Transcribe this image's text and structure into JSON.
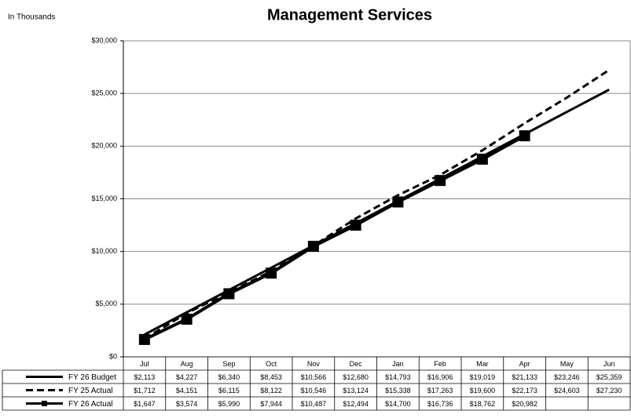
{
  "chart_data": {
    "type": "line",
    "title": "Management Services",
    "subtitle": "In Thousands",
    "categories": [
      "Jul",
      "Aug",
      "Sep",
      "Oct",
      "Nov",
      "Dec",
      "Jan",
      "Feb",
      "Mar",
      "Apr",
      "May",
      "Jun"
    ],
    "series": [
      {
        "name": "FY 26 Budget",
        "color": "#000000",
        "line_style": "solid",
        "marker": "none",
        "values": [
          2113,
          4227,
          6340,
          8453,
          10566,
          12680,
          14793,
          16906,
          19019,
          21133,
          23246,
          25359
        ],
        "value_labels": [
          "$2,113",
          "$4,227",
          "$6,340",
          "$8,453",
          "$10,566",
          "$12,680",
          "$14,793",
          "$16,906",
          "$19,019",
          "$21,133",
          "$23,246",
          "$25,359"
        ]
      },
      {
        "name": "FY 25 Actual",
        "color": "#000000",
        "line_style": "dashed",
        "marker": "none",
        "values": [
          1712,
          4151,
          6115,
          8122,
          10546,
          13124,
          15338,
          17263,
          19600,
          22173,
          24603,
          27230
        ],
        "value_labels": [
          "$1,712",
          "$4,151",
          "$6,115",
          "$8,122",
          "$10,546",
          "$13,124",
          "$15,338",
          "$17,263",
          "$19,600",
          "$22,173",
          "$24,603",
          "$27,230"
        ]
      },
      {
        "name": "FY 26 Actual",
        "color": "#000000",
        "line_style": "solid",
        "marker": "square",
        "values": [
          1647,
          3574,
          5990,
          7944,
          10487,
          12494,
          14700,
          16736,
          18762,
          20982,
          null,
          null
        ],
        "value_labels": [
          "$1,647",
          "$3,574",
          "$5,990",
          "$7,944",
          "$10,487",
          "$12,494",
          "$14,700",
          "$16,736",
          "$18,762",
          "$20,982",
          null,
          null
        ]
      }
    ],
    "ylim": [
      0,
      30000
    ],
    "yticks": [
      {
        "value": 0,
        "label": "$0"
      },
      {
        "value": 5000,
        "label": "$5,000"
      },
      {
        "value": 10000,
        "label": "$10,000"
      },
      {
        "value": 15000,
        "label": "$15,000"
      },
      {
        "value": 20000,
        "label": "$20,000"
      },
      {
        "value": 25000,
        "label": "$25,000"
      },
      {
        "value": 30000,
        "label": "$30,000"
      }
    ],
    "grid": true
  }
}
